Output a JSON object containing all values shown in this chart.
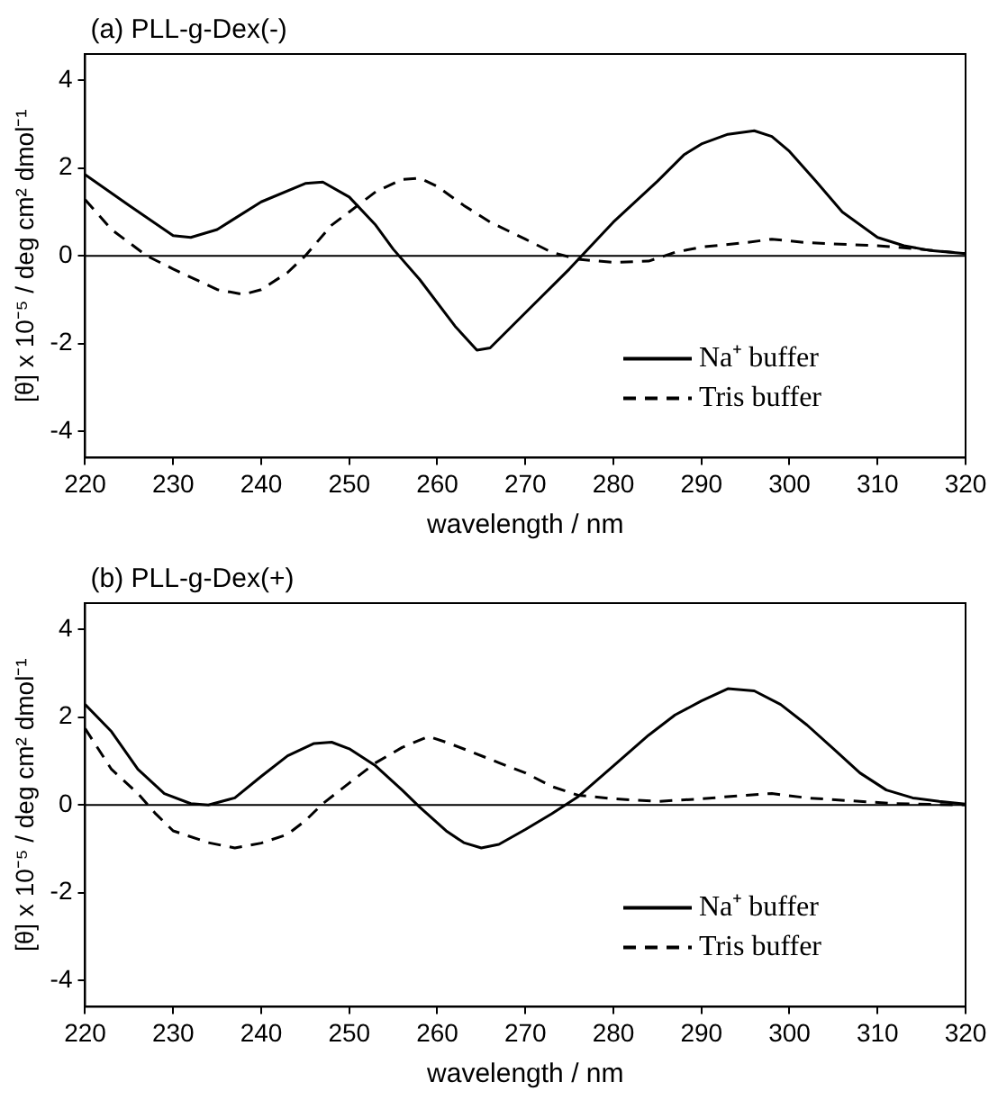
{
  "chart_data": [
    {
      "type": "line",
      "title": "(a) PLL-g-Dex(-)",
      "xlabel": "wavelength / nm",
      "ylabel": "[θ] x 10⁻⁵ / deg cm² dmol⁻¹",
      "xlim": [
        220,
        320
      ],
      "xticks": [
        220,
        230,
        240,
        250,
        260,
        270,
        280,
        290,
        300,
        310,
        320
      ],
      "ylim": [
        -4.6,
        4.6
      ],
      "yticks": [
        -4,
        -2,
        0,
        2,
        4
      ],
      "grid": false,
      "legend": "bottom right",
      "marker": "none",
      "ref_lines": [
        {
          "axis": "y",
          "value": 0,
          "color": "#000000"
        }
      ],
      "series": [
        {
          "name": "Na⁺ buffer",
          "color": "#000000",
          "line_style": "solid",
          "x": [
            220,
            225,
            230,
            232,
            235,
            240,
            245,
            247,
            250,
            253,
            255,
            258,
            262,
            264.5,
            266,
            270,
            275,
            280,
            285,
            288,
            290,
            293,
            296,
            298,
            300,
            303,
            306,
            310,
            313,
            316,
            320
          ],
          "values": [
            1.85,
            1.15,
            0.46,
            0.42,
            0.6,
            1.23,
            1.65,
            1.68,
            1.34,
            0.7,
            0.15,
            -0.54,
            -1.6,
            -2.15,
            -2.1,
            -1.3,
            -0.3,
            0.77,
            1.7,
            2.3,
            2.55,
            2.77,
            2.85,
            2.72,
            2.38,
            1.7,
            1.0,
            0.42,
            0.23,
            0.12,
            0.05
          ]
        },
        {
          "name": "Tris buffer",
          "color": "#000000",
          "line_style": "dashed",
          "x": [
            220,
            223,
            227,
            230,
            235,
            238,
            240,
            243,
            245,
            248,
            250,
            253,
            256,
            258,
            260,
            263,
            266,
            270,
            273,
            276,
            280,
            284,
            287,
            290,
            295,
            298,
            302,
            310,
            315,
            320
          ],
          "values": [
            1.28,
            0.6,
            0,
            -0.3,
            -0.77,
            -0.88,
            -0.77,
            -0.38,
            0,
            0.7,
            1.0,
            1.46,
            1.74,
            1.77,
            1.58,
            1.15,
            0.77,
            0.38,
            0.08,
            -0.08,
            -0.15,
            -0.12,
            0.08,
            0.2,
            0.3,
            0.38,
            0.3,
            0.23,
            0.15,
            0.05
          ]
        }
      ]
    },
    {
      "type": "line",
      "title": "(b) PLL-g-Dex(+)",
      "xlabel": "wavelength / nm",
      "ylabel": "[θ] x 10⁻⁵ / deg cm² dmol⁻¹",
      "xlim": [
        220,
        320
      ],
      "xticks": [
        220,
        230,
        240,
        250,
        260,
        270,
        280,
        290,
        300,
        310,
        320
      ],
      "ylim": [
        -4.6,
        4.6
      ],
      "yticks": [
        -4,
        -2,
        0,
        2,
        4
      ],
      "grid": false,
      "legend": "bottom right",
      "marker": "none",
      "ref_lines": [
        {
          "axis": "y",
          "value": 0,
          "color": "#000000"
        }
      ],
      "series": [
        {
          "name": "Na⁺ buffer",
          "color": "#000000",
          "line_style": "solid",
          "x": [
            220,
            223,
            226,
            229,
            232,
            234,
            237,
            240,
            243,
            246,
            248,
            250,
            253,
            256,
            258,
            261,
            263,
            265,
            267,
            270,
            273,
            276,
            280,
            284,
            287,
            290,
            293,
            296,
            299,
            302,
            305,
            308,
            311,
            314,
            317,
            320
          ],
          "values": [
            2.29,
            1.67,
            0.81,
            0.26,
            0.03,
            0,
            0.16,
            0.65,
            1.12,
            1.4,
            1.43,
            1.28,
            0.89,
            0.34,
            -0.05,
            -0.59,
            -0.86,
            -0.98,
            -0.9,
            -0.56,
            -0.2,
            0.19,
            0.89,
            1.59,
            2.05,
            2.37,
            2.65,
            2.6,
            2.29,
            1.82,
            1.28,
            0.73,
            0.34,
            0.16,
            0.08,
            0.02
          ]
        },
        {
          "name": "Tris buffer",
          "color": "#000000",
          "line_style": "dashed",
          "x": [
            220,
            223,
            226,
            228,
            230,
            234,
            237,
            240,
            243,
            245,
            247,
            250,
            253,
            256,
            259,
            261,
            264,
            267,
            270,
            273,
            276,
            280,
            285,
            290,
            295,
            298,
            302,
            308,
            312,
            320
          ],
          "values": [
            1.74,
            0.81,
            0.26,
            -0.2,
            -0.59,
            -0.86,
            -0.98,
            -0.87,
            -0.67,
            -0.36,
            0.03,
            0.5,
            0.96,
            1.31,
            1.56,
            1.43,
            1.2,
            0.96,
            0.73,
            0.42,
            0.22,
            0.14,
            0.08,
            0.14,
            0.22,
            0.26,
            0.16,
            0.08,
            0.03,
            0
          ]
        }
      ]
    }
  ]
}
